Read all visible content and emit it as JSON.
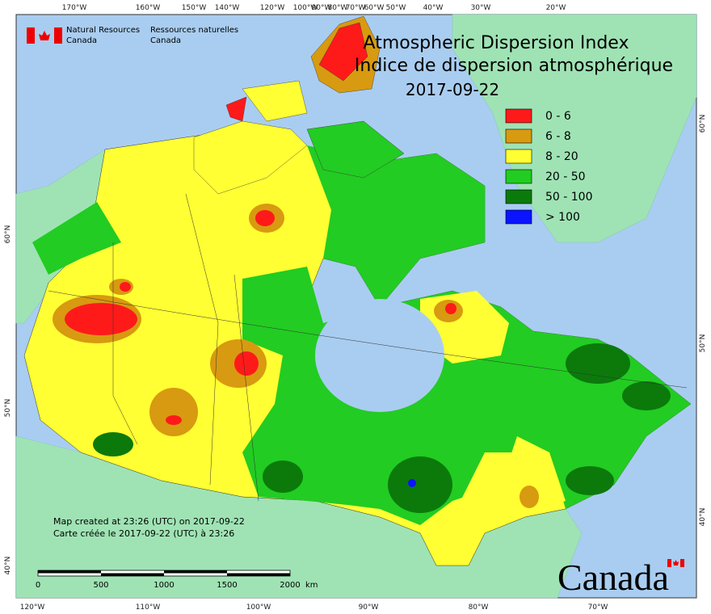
{
  "header": {
    "title_en": "Atmospheric Dispersion Index",
    "title_fr": "Indice de dispersion atmosphérique",
    "date": "2017-09-22"
  },
  "agency": {
    "en": [
      "Natural Resources",
      "Canada"
    ],
    "fr": [
      "Ressources naturelles",
      "Canada"
    ]
  },
  "legend": [
    {
      "label": "0 - 6",
      "color": "#ff1a1a"
    },
    {
      "label": "6 - 8",
      "color": "#d89a10"
    },
    {
      "label": "8 - 20",
      "color": "#ffff33"
    },
    {
      "label": "20 - 50",
      "color": "#22cc22"
    },
    {
      "label": "50 - 100",
      "color": "#0b7a0b"
    },
    {
      "label": "> 100",
      "color": "#0a14ff"
    }
  ],
  "top_axis_labels": [
    "170°W",
    "160°W",
    "150°W",
    "140°W",
    "120°W",
    "100°W",
    "90°W",
    "80°W",
    "70°W",
    "60°W",
    "50°W",
    "40°W",
    "30°W",
    "20°W"
  ],
  "bottom_axis_labels": [
    "120°W",
    "110°W",
    "100°W",
    "90°W",
    "80°W",
    "70°W"
  ],
  "left_axis_labels": [
    "60°N",
    "50°N",
    "40°N"
  ],
  "right_axis_labels": [
    "60°N",
    "50°N",
    "40°N"
  ],
  "notes": [
    "Map created at 23:26 (UTC) on 2017-09-22",
    "Carte créée le 2017-09-22 (UTC) à 23:26"
  ],
  "scale_bar": {
    "ticks": [
      "0",
      "500",
      "1000",
      "1500",
      "2000"
    ],
    "unit": "km"
  },
  "wordmark": "Canada"
}
